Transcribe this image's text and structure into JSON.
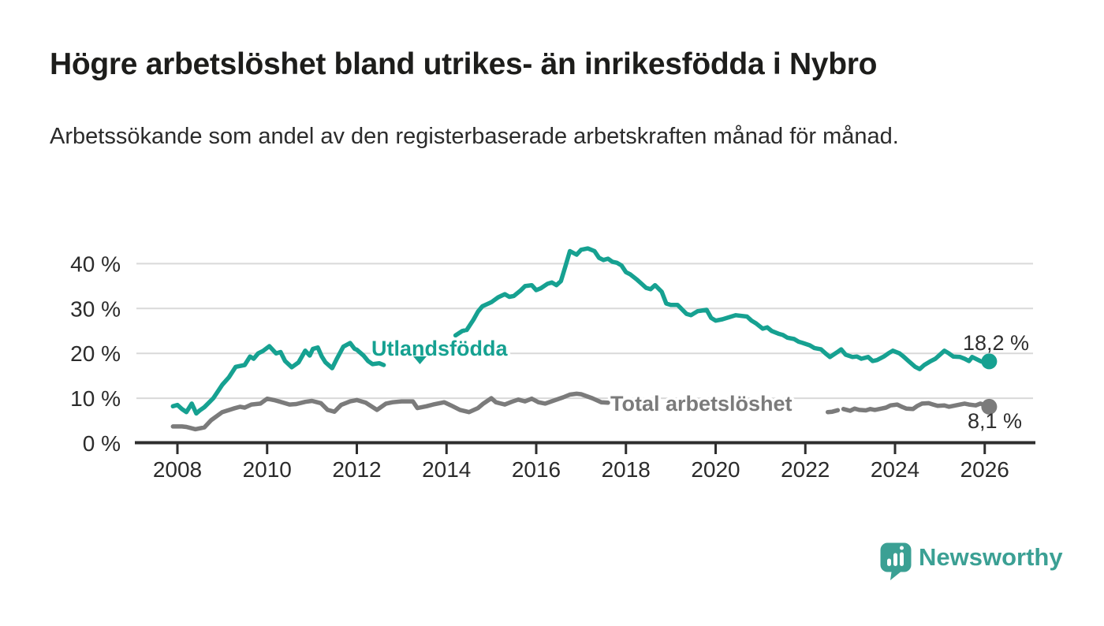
{
  "header": {
    "title": "Högre arbetslöshet bland utrikes- än inrikesfödda i Nybro",
    "subtitle": "Arbetssökande som andel av den registerbaserade arbetskraften månad för månad."
  },
  "chart_data": {
    "type": "line",
    "unit": "%",
    "grid": "horizontal",
    "legend": "inline-labels",
    "xlim": [
      2007.07,
      2027.11
    ],
    "ylim": [
      0,
      45.5
    ],
    "x_ticks": [
      2008,
      2010,
      2012,
      2014,
      2016,
      2018,
      2020,
      2022,
      2024,
      2026
    ],
    "y_ticks": [
      0,
      10,
      20,
      30,
      40
    ],
    "y_tick_labels": [
      "0 %",
      "10 %",
      "20 %",
      "30 %",
      "40 %"
    ],
    "colors": {
      "utlandsfodda": "#16a191",
      "total": "#7b7b7b",
      "gridline": "#d9d9d9",
      "axis": "#2e2e2e",
      "tick_text": "#2b2b2b",
      "value_text": "#2e2e2e"
    },
    "series": [
      {
        "name": "Utlandsfödda",
        "color": "#16a191",
        "end_label": "18,2 %",
        "end_value": 18.2,
        "points": [
          [
            2007.9,
            8.2
          ],
          [
            2008.0,
            8.5
          ],
          [
            2008.1,
            7.6
          ],
          [
            2008.2,
            6.9
          ],
          [
            2008.32,
            8.8
          ],
          [
            2008.42,
            6.6
          ],
          [
            2008.5,
            7.3
          ],
          [
            2008.6,
            8.0
          ],
          [
            2008.8,
            10.0
          ],
          [
            2009.0,
            13.0
          ],
          [
            2009.15,
            14.7
          ],
          [
            2009.3,
            17.0
          ],
          [
            2009.5,
            17.4
          ],
          [
            2009.62,
            19.3
          ],
          [
            2009.7,
            18.8
          ],
          [
            2009.8,
            20.0
          ],
          [
            2009.9,
            20.5
          ],
          [
            2010.05,
            21.6
          ],
          [
            2010.2,
            20.0
          ],
          [
            2010.3,
            20.3
          ],
          [
            2010.4,
            18.3
          ],
          [
            2010.55,
            16.9
          ],
          [
            2010.7,
            18.0
          ],
          [
            2010.85,
            20.6
          ],
          [
            2010.95,
            19.5
          ],
          [
            2011.02,
            21.0
          ],
          [
            2011.13,
            21.3
          ],
          [
            2011.22,
            19.3
          ],
          [
            2011.3,
            18.0
          ],
          [
            2011.45,
            16.7
          ],
          [
            2011.55,
            18.7
          ],
          [
            2011.7,
            21.5
          ],
          [
            2011.85,
            22.3
          ],
          [
            2011.95,
            21.0
          ],
          [
            2012.0,
            20.8
          ],
          [
            2012.15,
            19.5
          ],
          [
            2012.25,
            18.3
          ],
          [
            2012.35,
            17.6
          ],
          [
            2012.5,
            17.8
          ],
          [
            2012.6,
            17.4
          ],
          [
            2012.75,
            18.3
          ],
          [
            2012.9,
            18.8
          ],
          [
            2013.1,
            19.0
          ],
          [
            2013.4,
            18.6
          ],
          [
            2013.6,
            19.0
          ],
          [
            2013.8,
            19.8
          ],
          [
            2014.0,
            22.0
          ],
          [
            2014.2,
            24.0
          ],
          [
            2014.35,
            25.0
          ],
          [
            2014.45,
            25.2
          ],
          [
            2014.6,
            27.5
          ],
          [
            2014.7,
            29.3
          ],
          [
            2014.8,
            30.5
          ],
          [
            2015.0,
            31.4
          ],
          [
            2015.15,
            32.5
          ],
          [
            2015.3,
            33.2
          ],
          [
            2015.4,
            32.6
          ],
          [
            2015.5,
            32.8
          ],
          [
            2015.65,
            34.0
          ],
          [
            2015.75,
            35.0
          ],
          [
            2015.9,
            35.2
          ],
          [
            2016.0,
            34.1
          ],
          [
            2016.1,
            34.5
          ],
          [
            2016.25,
            35.5
          ],
          [
            2016.35,
            35.8
          ],
          [
            2016.45,
            35.2
          ],
          [
            2016.55,
            36.1
          ],
          [
            2016.65,
            39.4
          ],
          [
            2016.75,
            42.8
          ],
          [
            2016.9,
            42.0
          ],
          [
            2017.0,
            43.1
          ],
          [
            2017.15,
            43.4
          ],
          [
            2017.3,
            42.8
          ],
          [
            2017.4,
            41.3
          ],
          [
            2017.5,
            40.8
          ],
          [
            2017.6,
            41.1
          ],
          [
            2017.7,
            40.4
          ],
          [
            2017.8,
            40.2
          ],
          [
            2017.9,
            39.6
          ],
          [
            2018.0,
            38.1
          ],
          [
            2018.1,
            37.6
          ],
          [
            2018.25,
            36.4
          ],
          [
            2018.35,
            35.5
          ],
          [
            2018.45,
            34.6
          ],
          [
            2018.55,
            34.3
          ],
          [
            2018.65,
            35.2
          ],
          [
            2018.8,
            33.7
          ],
          [
            2018.9,
            31.1
          ],
          [
            2019.0,
            30.8
          ],
          [
            2019.15,
            30.8
          ],
          [
            2019.35,
            28.8
          ],
          [
            2019.45,
            28.5
          ],
          [
            2019.6,
            29.4
          ],
          [
            2019.8,
            29.7
          ],
          [
            2019.9,
            27.9
          ],
          [
            2020.0,
            27.3
          ],
          [
            2020.15,
            27.6
          ],
          [
            2020.35,
            28.2
          ],
          [
            2020.45,
            28.5
          ],
          [
            2020.7,
            28.2
          ],
          [
            2020.8,
            27.3
          ],
          [
            2020.9,
            26.7
          ],
          [
            2021.05,
            25.5
          ],
          [
            2021.15,
            25.8
          ],
          [
            2021.25,
            25.0
          ],
          [
            2021.4,
            24.4
          ],
          [
            2021.5,
            24.1
          ],
          [
            2021.6,
            23.5
          ],
          [
            2021.75,
            23.2
          ],
          [
            2021.85,
            22.6
          ],
          [
            2021.95,
            22.3
          ],
          [
            2022.1,
            21.8
          ],
          [
            2022.2,
            21.2
          ],
          [
            2022.35,
            20.9
          ],
          [
            2022.45,
            20.0
          ],
          [
            2022.55,
            19.2
          ],
          [
            2022.7,
            20.2
          ],
          [
            2022.8,
            20.9
          ],
          [
            2022.9,
            19.7
          ],
          [
            2023.05,
            19.2
          ],
          [
            2023.15,
            19.3
          ],
          [
            2023.25,
            18.8
          ],
          [
            2023.4,
            19.2
          ],
          [
            2023.5,
            18.3
          ],
          [
            2023.6,
            18.5
          ],
          [
            2023.75,
            19.3
          ],
          [
            2023.85,
            20.0
          ],
          [
            2023.95,
            20.6
          ],
          [
            2024.1,
            20.0
          ],
          [
            2024.2,
            19.2
          ],
          [
            2024.3,
            18.3
          ],
          [
            2024.45,
            17.0
          ],
          [
            2024.55,
            16.5
          ],
          [
            2024.65,
            17.4
          ],
          [
            2024.8,
            18.3
          ],
          [
            2024.9,
            18.8
          ],
          [
            2025.0,
            19.7
          ],
          [
            2025.1,
            20.6
          ],
          [
            2025.2,
            20.0
          ],
          [
            2025.3,
            19.3
          ],
          [
            2025.45,
            19.2
          ],
          [
            2025.55,
            18.8
          ],
          [
            2025.65,
            18.3
          ],
          [
            2025.72,
            19.2
          ],
          [
            2025.9,
            18.3
          ],
          [
            2026.0,
            17.9
          ],
          [
            2026.1,
            18.2
          ]
        ]
      },
      {
        "name": "Total arbetslöshet",
        "color": "#7b7b7b",
        "end_label": "8,1 %",
        "end_value": 8.1,
        "points": [
          [
            2007.9,
            3.7
          ],
          [
            2008.1,
            3.7
          ],
          [
            2008.2,
            3.6
          ],
          [
            2008.4,
            3.1
          ],
          [
            2008.6,
            3.5
          ],
          [
            2008.75,
            5.1
          ],
          [
            2009.0,
            6.9
          ],
          [
            2009.25,
            7.7
          ],
          [
            2009.4,
            8.1
          ],
          [
            2009.5,
            7.9
          ],
          [
            2009.65,
            8.6
          ],
          [
            2009.85,
            8.8
          ],
          [
            2010.0,
            9.9
          ],
          [
            2010.15,
            9.6
          ],
          [
            2010.3,
            9.2
          ],
          [
            2010.5,
            8.6
          ],
          [
            2010.65,
            8.7
          ],
          [
            2010.85,
            9.2
          ],
          [
            2011.0,
            9.4
          ],
          [
            2011.2,
            8.9
          ],
          [
            2011.35,
            7.4
          ],
          [
            2011.5,
            7.0
          ],
          [
            2011.65,
            8.5
          ],
          [
            2011.85,
            9.3
          ],
          [
            2012.0,
            9.6
          ],
          [
            2012.2,
            9.0
          ],
          [
            2012.45,
            7.4
          ],
          [
            2012.65,
            8.8
          ],
          [
            2012.8,
            9.1
          ],
          [
            2013.0,
            9.3
          ],
          [
            2013.25,
            9.3
          ],
          [
            2013.35,
            7.8
          ],
          [
            2013.55,
            8.2
          ],
          [
            2013.7,
            8.6
          ],
          [
            2013.95,
            9.1
          ],
          [
            2014.1,
            8.4
          ],
          [
            2014.3,
            7.4
          ],
          [
            2014.5,
            6.9
          ],
          [
            2014.7,
            7.8
          ],
          [
            2014.82,
            8.8
          ],
          [
            2015.0,
            10.0
          ],
          [
            2015.1,
            9.1
          ],
          [
            2015.3,
            8.6
          ],
          [
            2015.45,
            9.2
          ],
          [
            2015.6,
            9.7
          ],
          [
            2015.75,
            9.3
          ],
          [
            2015.9,
            9.9
          ],
          [
            2016.05,
            9.1
          ],
          [
            2016.2,
            8.8
          ],
          [
            2016.4,
            9.5
          ],
          [
            2016.6,
            10.2
          ],
          [
            2016.75,
            10.8
          ],
          [
            2016.9,
            11.0
          ],
          [
            2017.0,
            10.9
          ],
          [
            2017.25,
            10.0
          ],
          [
            2017.45,
            9.1
          ],
          [
            2017.6,
            9.0
          ],
          [
            2017.8,
            8.8
          ],
          [
            2018.0,
            8.6
          ],
          [
            2018.3,
            8.3
          ],
          [
            2018.6,
            8.1
          ],
          [
            2019.0,
            7.9
          ],
          [
            2019.5,
            7.7
          ],
          [
            2020.0,
            7.9
          ],
          [
            2020.5,
            7.8
          ],
          [
            2021.0,
            7.5
          ],
          [
            2021.5,
            7.2
          ],
          [
            2022.0,
            7.0
          ],
          [
            2022.3,
            6.9
          ],
          [
            2022.5,
            6.9
          ],
          [
            2022.6,
            7.0
          ],
          [
            2022.75,
            7.4
          ],
          [
            2022.85,
            7.6
          ],
          [
            2023.0,
            7.2
          ],
          [
            2023.1,
            7.7
          ],
          [
            2023.2,
            7.4
          ],
          [
            2023.35,
            7.3
          ],
          [
            2023.45,
            7.6
          ],
          [
            2023.55,
            7.4
          ],
          [
            2023.7,
            7.7
          ],
          [
            2023.8,
            7.9
          ],
          [
            2023.9,
            8.4
          ],
          [
            2024.05,
            8.6
          ],
          [
            2024.15,
            8.1
          ],
          [
            2024.25,
            7.7
          ],
          [
            2024.4,
            7.6
          ],
          [
            2024.5,
            8.3
          ],
          [
            2024.6,
            8.8
          ],
          [
            2024.75,
            8.9
          ],
          [
            2024.85,
            8.6
          ],
          [
            2024.95,
            8.3
          ],
          [
            2025.1,
            8.4
          ],
          [
            2025.2,
            8.1
          ],
          [
            2025.3,
            8.3
          ],
          [
            2025.45,
            8.6
          ],
          [
            2025.55,
            8.8
          ],
          [
            2025.65,
            8.6
          ],
          [
            2025.8,
            8.4
          ],
          [
            2025.9,
            8.8
          ],
          [
            2026.0,
            8.5
          ],
          [
            2026.1,
            8.1
          ]
        ]
      }
    ]
  },
  "footer": {
    "brand": "Newsworthy",
    "brand_color": "#3ba094",
    "logo_icon": "speech-bubble-bar-chart"
  }
}
